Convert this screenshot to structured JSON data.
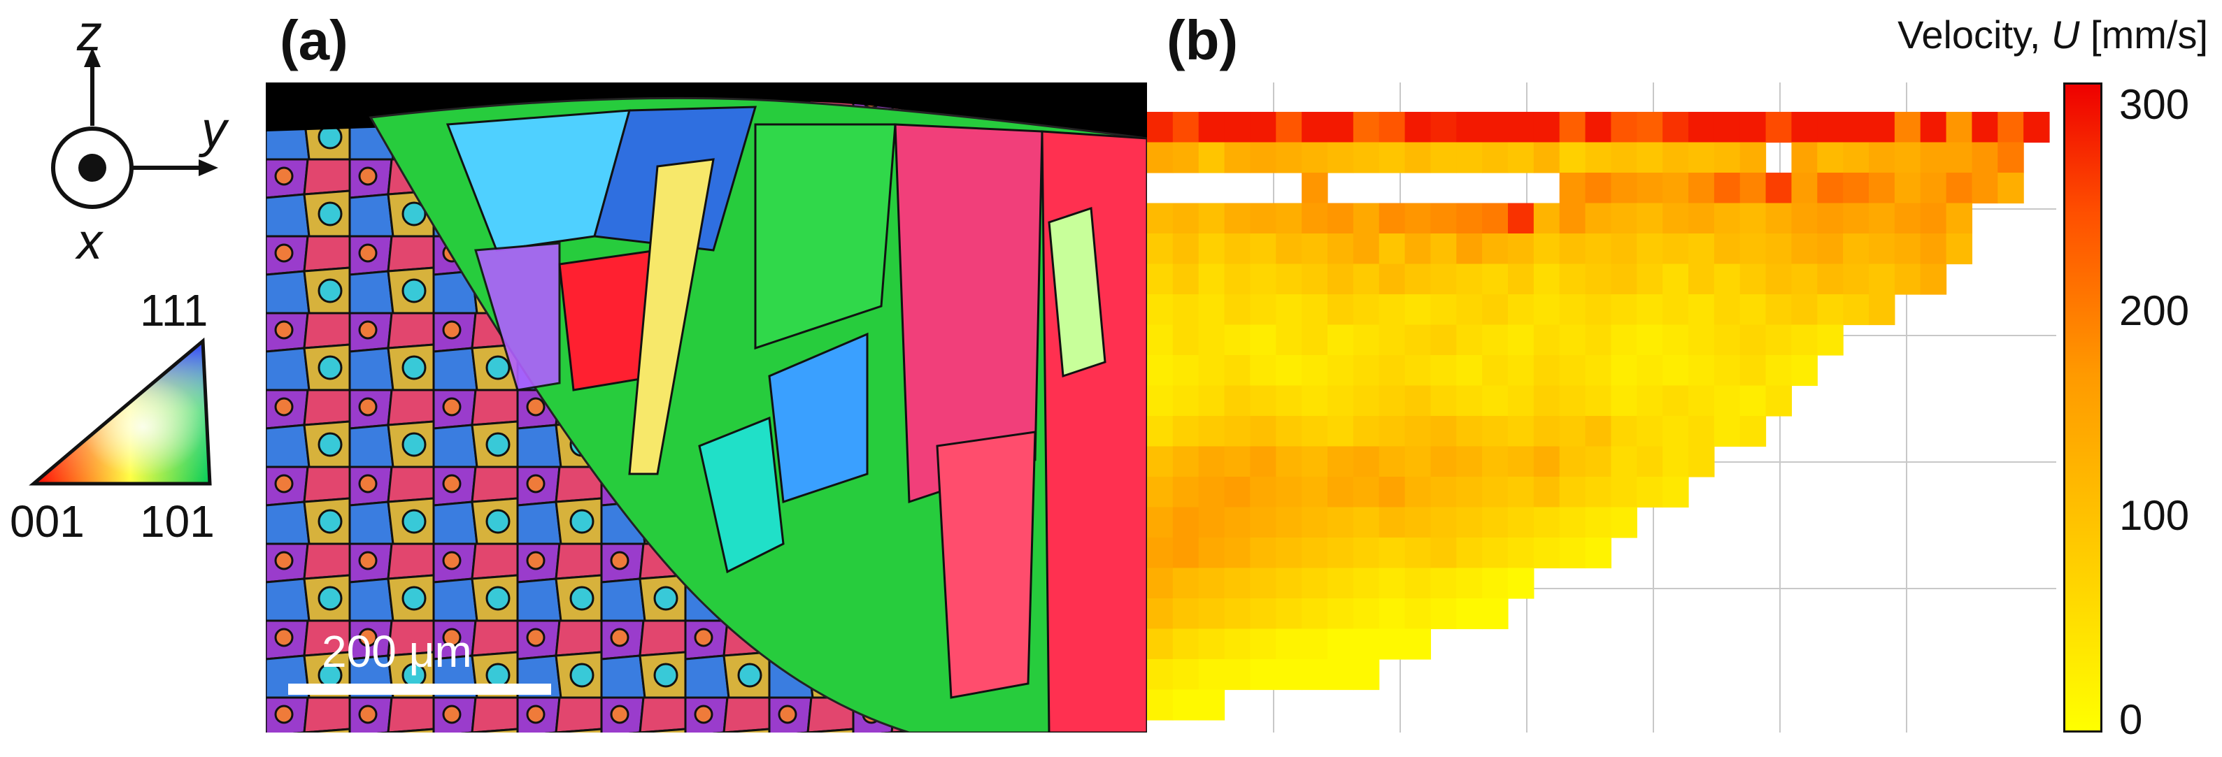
{
  "panel_a": {
    "label": "(a)",
    "coordinate_axes": {
      "z": "z",
      "y": "y",
      "x": "x"
    },
    "ipf_key": {
      "top": "111",
      "bottom_left": "001",
      "bottom_right": "101"
    },
    "scale_bar": {
      "label": "200 μm"
    }
  },
  "panel_b": {
    "label": "(b)",
    "colorbar": {
      "title_prefix": "Velocity, ",
      "title_symbol": "U",
      "title_unit": " [mm/s]",
      "ticks": [
        "300",
        "200",
        "100",
        "0"
      ],
      "min": 0,
      "max": 320,
      "colors": {
        "low": "#ffff00",
        "mid": "#ff9a00",
        "high": "#ee0000"
      }
    }
  },
  "chart_data": {
    "type": "heatmap",
    "value_label": "Velocity, U [mm/s]",
    "value_range": [
      0,
      320
    ],
    "rows": 20,
    "columns": 35,
    "row_lengths": [
      35,
      34,
      34,
      32,
      32,
      31,
      29,
      27,
      26,
      25,
      24,
      22,
      21,
      19,
      18,
      15,
      14,
      11,
      9,
      3
    ],
    "blank_cells": [
      [
        2,
        0
      ],
      [
        2,
        1
      ],
      [
        2,
        2
      ],
      [
        2,
        3
      ],
      [
        2,
        4
      ],
      [
        2,
        5
      ],
      [
        2,
        7
      ],
      [
        2,
        8
      ],
      [
        2,
        9
      ],
      [
        2,
        10
      ],
      [
        2,
        11
      ],
      [
        2,
        12
      ],
      [
        2,
        13
      ],
      [
        2,
        14
      ],
      [
        2,
        15
      ],
      [
        1,
        24
      ]
    ],
    "values": [
      [
        290,
        260,
        300,
        300,
        300,
        250,
        300,
        300,
        230,
        250,
        300,
        290,
        300,
        300,
        300,
        300,
        240,
        300,
        250,
        240,
        280,
        300,
        300,
        300,
        260,
        300,
        300,
        300,
        300,
        200,
        300,
        180,
        300,
        230,
        300
      ],
      [
        150,
        140,
        100,
        140,
        150,
        140,
        130,
        120,
        110,
        100,
        120,
        100,
        100,
        110,
        100,
        130,
        80,
        100,
        110,
        100,
        120,
        110,
        120,
        140,
        0,
        160,
        120,
        130,
        150,
        140,
        160,
        160,
        180,
        210
      ],
      [
        0,
        0,
        0,
        0,
        0,
        0,
        180,
        0,
        0,
        0,
        0,
        0,
        0,
        0,
        0,
        0,
        180,
        200,
        180,
        170,
        160,
        190,
        230,
        200,
        270,
        170,
        220,
        210,
        190,
        150,
        170,
        200,
        180,
        140
      ],
      [
        120,
        130,
        110,
        140,
        150,
        140,
        170,
        180,
        150,
        190,
        180,
        190,
        200,
        210,
        280,
        130,
        180,
        140,
        130,
        120,
        140,
        150,
        130,
        120,
        140,
        160,
        170,
        160,
        150,
        170,
        180,
        140
      ],
      [
        90,
        110,
        80,
        100,
        90,
        120,
        110,
        130,
        150,
        100,
        140,
        110,
        160,
        130,
        120,
        90,
        110,
        100,
        110,
        90,
        100,
        90,
        120,
        110,
        120,
        140,
        150,
        120,
        130,
        140,
        160,
        120
      ],
      [
        70,
        90,
        60,
        80,
        70,
        80,
        90,
        110,
        90,
        120,
        100,
        90,
        80,
        70,
        90,
        60,
        80,
        90,
        100,
        80,
        60,
        90,
        70,
        90,
        110,
        100,
        120,
        110,
        100,
        120,
        140
      ],
      [
        50,
        60,
        50,
        70,
        60,
        50,
        60,
        80,
        70,
        60,
        50,
        60,
        70,
        80,
        60,
        50,
        60,
        70,
        60,
        50,
        60,
        50,
        70,
        60,
        80,
        90,
        70,
        80,
        100
      ],
      [
        40,
        60,
        50,
        40,
        30,
        50,
        60,
        40,
        50,
        60,
        70,
        80,
        60,
        50,
        40,
        60,
        50,
        60,
        40,
        30,
        40,
        50,
        60,
        70,
        60,
        50,
        40
      ],
      [
        30,
        40,
        50,
        60,
        40,
        30,
        40,
        50,
        60,
        70,
        60,
        50,
        40,
        60,
        50,
        70,
        60,
        50,
        30,
        40,
        30,
        40,
        50,
        60,
        40,
        30
      ],
      [
        40,
        50,
        60,
        80,
        70,
        60,
        50,
        60,
        70,
        80,
        90,
        70,
        60,
        50,
        60,
        80,
        70,
        60,
        40,
        50,
        60,
        50,
        40,
        30,
        50
      ],
      [
        60,
        80,
        90,
        100,
        110,
        90,
        80,
        70,
        90,
        100,
        110,
        120,
        100,
        90,
        80,
        100,
        90,
        110,
        70,
        60,
        50,
        60,
        40,
        50
      ],
      [
        110,
        130,
        150,
        140,
        160,
        130,
        120,
        140,
        150,
        130,
        120,
        140,
        130,
        110,
        120,
        140,
        100,
        90,
        60,
        70,
        50,
        60
      ],
      [
        130,
        150,
        160,
        170,
        150,
        140,
        130,
        150,
        140,
        160,
        130,
        120,
        110,
        100,
        90,
        110,
        80,
        70,
        60,
        50,
        40
      ],
      [
        150,
        170,
        160,
        150,
        140,
        130,
        120,
        110,
        100,
        120,
        110,
        100,
        90,
        80,
        70,
        60,
        50,
        40,
        30
      ],
      [
        160,
        170,
        150,
        140,
        120,
        110,
        100,
        90,
        80,
        70,
        80,
        90,
        70,
        60,
        50,
        40,
        30,
        20
      ],
      [
        140,
        120,
        110,
        100,
        90,
        80,
        70,
        60,
        50,
        40,
        50,
        40,
        30,
        20,
        10
      ],
      [
        120,
        100,
        90,
        80,
        70,
        60,
        50,
        40,
        30,
        20,
        30,
        20,
        10,
        10
      ],
      [
        80,
        60,
        50,
        40,
        30,
        20,
        20,
        10,
        10,
        10,
        10
      ],
      [
        40,
        30,
        20,
        20,
        10,
        10,
        10,
        10,
        10
      ],
      [
        20,
        10,
        10
      ]
    ]
  }
}
